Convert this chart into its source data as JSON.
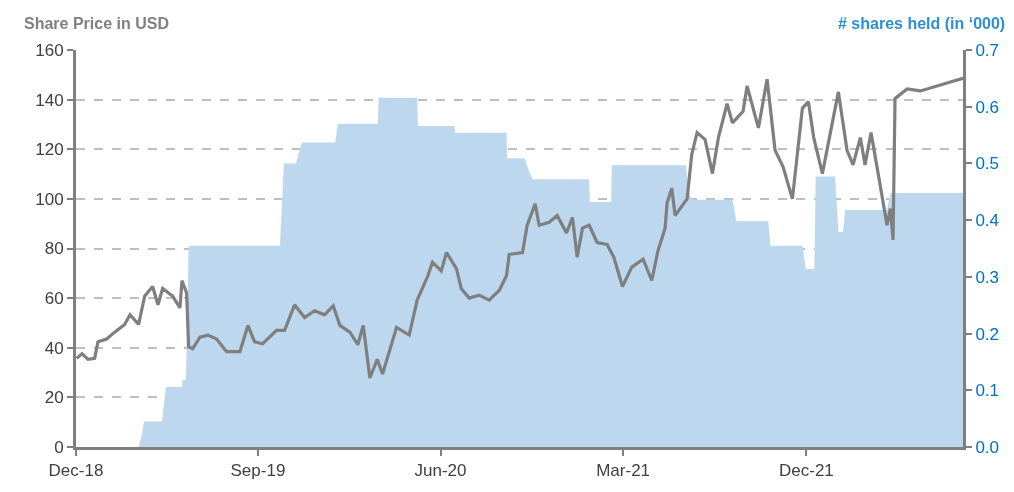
{
  "chart_data": {
    "type": "line",
    "ylabel": "Share Price in USD",
    "y2label": "# shares held (in ‘000)",
    "xlim": [
      "2018-12-31",
      "2022-08-23"
    ],
    "xticks": [
      {
        "value": "2018-12-31",
        "label": "Dec-18"
      },
      {
        "value": "2019-09-30",
        "label": "Sep-19"
      },
      {
        "value": "2020-06-30",
        "label": "Jun-20"
      },
      {
        "value": "2021-03-31",
        "label": "Mar-21"
      },
      {
        "value": "2021-12-31",
        "label": "Dec-21"
      }
    ],
    "ylim": [
      0,
      160
    ],
    "yticks": [
      0,
      20,
      40,
      60,
      80,
      100,
      120,
      140,
      160
    ],
    "y2lim": [
      0,
      0.7
    ],
    "y2ticks": [
      {
        "value": 0,
        "label": "0.0"
      },
      0.1,
      0.2,
      0.3,
      0.4,
      0.5,
      0.6,
      0.7
    ],
    "grid": "y",
    "series": [
      {
        "type": "area",
        "axis": "y2",
        "color": "#bdd7ee",
        "x": [
          "2018-12-31",
          "2019-04-04",
          "2019-04-09",
          "2019-04-12",
          "2019-05-09",
          "2019-05-15",
          "2019-06-08",
          "2019-06-09",
          "2019-06-14",
          "2019-06-18",
          "2019-11-02",
          "2019-11-08",
          "2019-11-26",
          "2019-12-05",
          "2020-01-24",
          "2020-01-28",
          "2020-03-28",
          "2020-03-29",
          "2020-05-26",
          "2020-05-27",
          "2020-07-21",
          "2020-07-22",
          "2020-10-07",
          "2020-10-08",
          "2020-11-03",
          "2020-11-09",
          "2020-11-15",
          "2021-02-08",
          "2021-02-09",
          "2021-03-13",
          "2021-03-14",
          "2021-07-03",
          "2021-07-09",
          "2021-07-14",
          "2021-09-11",
          "2021-09-17",
          "2021-11-04",
          "2021-11-07",
          "2021-12-25",
          "2021-12-30",
          "2022-01-12",
          "2022-01-14",
          "2022-02-12",
          "2022-02-17",
          "2022-02-24",
          "2022-02-27",
          "2022-05-01",
          "2022-05-06",
          "2022-08-23"
        ],
        "values": [
          0,
          0,
          0.022,
          0.045,
          0.045,
          0.106,
          0.106,
          0.118,
          0.118,
          0.355,
          0.355,
          0.5,
          0.5,
          0.537,
          0.537,
          0.57,
          0.57,
          0.616,
          0.616,
          0.566,
          0.566,
          0.554,
          0.554,
          0.509,
          0.509,
          0.489,
          0.472,
          0.472,
          0.432,
          0.432,
          0.497,
          0.497,
          0.443,
          0.436,
          0.436,
          0.398,
          0.398,
          0.355,
          0.355,
          0.314,
          0.314,
          0.477,
          0.477,
          0.379,
          0.379,
          0.418,
          0.418,
          0.448,
          0.448
        ]
      },
      {
        "color": "#7f7f7f",
        "x": [
          "2019-01-01",
          "2019-01-09",
          "2019-01-18",
          "2019-01-28",
          "2019-02-02",
          "2019-02-15",
          "2019-02-27",
          "2019-03-14",
          "2019-03-22",
          "2019-04-04",
          "2019-04-13",
          "2019-04-25",
          "2019-05-03",
          "2019-05-10",
          "2019-05-25",
          "2019-06-05",
          "2019-06-08",
          "2019-06-15",
          "2019-06-18",
          "2019-06-24",
          "2019-07-05",
          "2019-07-17",
          "2019-07-30",
          "2019-08-14",
          "2019-09-03",
          "2019-09-15",
          "2019-09-25",
          "2019-10-07",
          "2019-10-28",
          "2019-11-09",
          "2019-11-24",
          "2019-12-09",
          "2019-12-24",
          "2020-01-08",
          "2020-01-21",
          "2020-01-31",
          "2020-02-15",
          "2020-02-27",
          "2020-03-06",
          "2020-03-16",
          "2020-03-27",
          "2020-04-04",
          "2020-04-25",
          "2020-05-14",
          "2020-05-26",
          "2020-06-11",
          "2020-06-18",
          "2020-07-01",
          "2020-07-09",
          "2020-07-24",
          "2020-07-31",
          "2020-08-12",
          "2020-08-27",
          "2020-09-11",
          "2020-09-26",
          "2020-10-07",
          "2020-10-11",
          "2020-10-31",
          "2020-11-07",
          "2020-11-19",
          "2020-11-25",
          "2020-12-10",
          "2020-12-22",
          "2021-01-05",
          "2021-01-14",
          "2021-01-21",
          "2021-01-29",
          "2021-02-08",
          "2021-02-20",
          "2021-03-07",
          "2021-03-17",
          "2021-03-30",
          "2021-04-13",
          "2021-04-30",
          "2021-05-13",
          "2021-05-22",
          "2021-06-02",
          "2021-06-05",
          "2021-06-12",
          "2021-06-17",
          "2021-07-05",
          "2021-07-12",
          "2021-07-20",
          "2021-08-01",
          "2021-08-12",
          "2021-08-21",
          "2021-09-03",
          "2021-09-11",
          "2021-09-27",
          "2021-10-03",
          "2021-10-20",
          "2021-11-02",
          "2021-11-14",
          "2021-11-26",
          "2021-12-10",
          "2021-12-25",
          "2022-01-03",
          "2022-01-11",
          "2022-01-24",
          "2022-02-17",
          "2022-03-02",
          "2022-03-11",
          "2022-03-22",
          "2022-03-29",
          "2022-04-07",
          "2022-04-21",
          "2022-05-01",
          "2022-05-06",
          "2022-05-10",
          "2022-05-13",
          "2022-05-31",
          "2022-06-20",
          "2022-07-15",
          "2022-08-04",
          "2022-08-23"
        ],
        "values": [
          35.7,
          37.6,
          35.3,
          35.7,
          42.4,
          43.5,
          46.3,
          49.4,
          53.3,
          49.4,
          60.8,
          64.7,
          57.3,
          63.9,
          60.8,
          56.1,
          67.1,
          62,
          40.4,
          39.6,
          44.3,
          45.1,
          43.5,
          38.4,
          38.4,
          49,
          42.4,
          41.6,
          47,
          47,
          57.3,
          52.2,
          54.9,
          53.3,
          56.9,
          49,
          46.3,
          41.2,
          49,
          27.8,
          35.3,
          29.4,
          48.2,
          45.1,
          59.2,
          69,
          74.5,
          71,
          78.4,
          71.8,
          63.9,
          60,
          61.2,
          59.2,
          63.1,
          69,
          77.6,
          78.4,
          89.4,
          98,
          89.4,
          90.6,
          93.3,
          86.3,
          92.5,
          76.5,
          88.2,
          89.4,
          82.4,
          81.6,
          76.5,
          64.7,
          72.5,
          75.7,
          67.1,
          78.8,
          88.2,
          98.4,
          104.3,
          93.3,
          100,
          118,
          126.7,
          123.9,
          110.2,
          124.7,
          138.4,
          130.6,
          135.3,
          145.5,
          128.6,
          148.2,
          119.6,
          112.9,
          100,
          136.5,
          139.2,
          124.7,
          110.2,
          143.1,
          119.6,
          113.7,
          124.7,
          113.7,
          126.7,
          105.1,
          89.4,
          96.1,
          83.5,
          140.4,
          144.3,
          143.5,
          145.5,
          147.1,
          148.6
        ]
      }
    ]
  }
}
